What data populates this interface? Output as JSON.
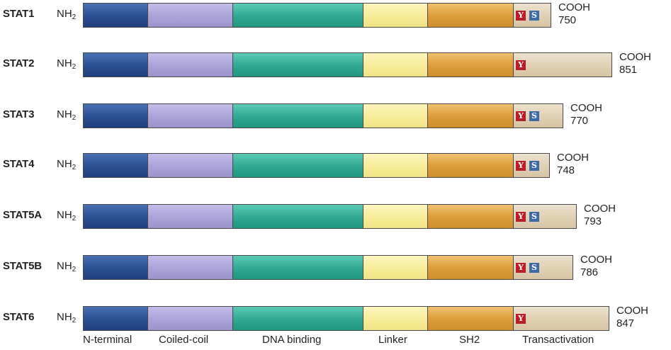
{
  "colors": {
    "n_terminal": "#2b4f91",
    "coiled_coil": "#aba2d8",
    "dna_binding": "#2ea891",
    "linker": "#f7ec98",
    "sh2": "#dc9c3a",
    "transactivation": "#e0cfb2",
    "tyrosine_site": "#b81d2a",
    "serine_site": "#3a6aa8"
  },
  "n_terminal_label": "NH",
  "n_terminal_sub": "2",
  "c_terminal_label": "COOH",
  "tyrosine_letter": "Y",
  "serine_letter": "S",
  "proteins": [
    {
      "name": "STAT1",
      "length": "750",
      "has_y": true,
      "has_s": true
    },
    {
      "name": "STAT2",
      "length": "851",
      "has_y": true,
      "has_s": false
    },
    {
      "name": "STAT3",
      "length": "770",
      "has_y": true,
      "has_s": true
    },
    {
      "name": "STAT4",
      "length": "748",
      "has_y": true,
      "has_s": true
    },
    {
      "name": "STAT5A",
      "length": "793",
      "has_y": true,
      "has_s": true
    },
    {
      "name": "STAT5B",
      "length": "786",
      "has_y": true,
      "has_s": true
    },
    {
      "name": "STAT6",
      "length": "847",
      "has_y": true,
      "has_s": false
    }
  ],
  "domain_labels": {
    "n_terminal": "N-terminal",
    "coiled_coil": "Coiled-coil",
    "dna_binding": "DNA binding",
    "linker": "Linker",
    "sh2": "SH2",
    "transactivation": "Transactivation"
  }
}
